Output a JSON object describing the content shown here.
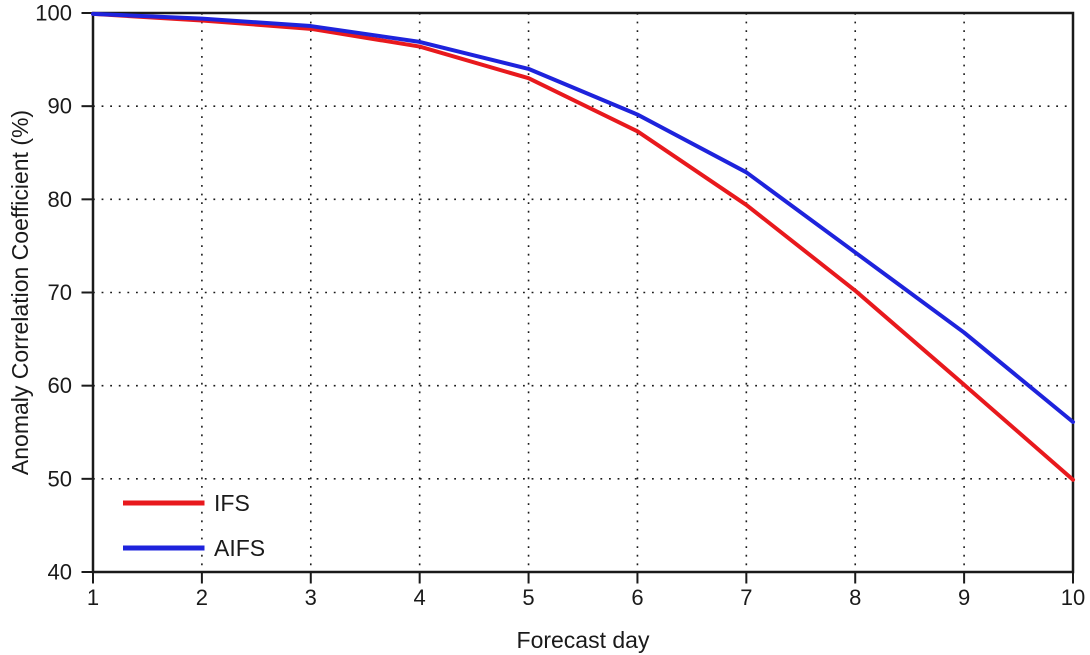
{
  "figure": {
    "background": "#ffffff"
  },
  "style": {
    "axis_color": "#1a1a1a",
    "grid_color": "#1a1a1a",
    "text_color": "#1a1a1a",
    "line_width": 4
  },
  "chart_data": {
    "type": "line",
    "title": "",
    "xlabel": "Forecast day",
    "ylabel": "Anomaly Correlation Coefficient (%)",
    "x": [
      1,
      2,
      3,
      4,
      5,
      6,
      7,
      8,
      9,
      10
    ],
    "series": [
      {
        "name": "IFS",
        "color": "#e8191d",
        "values": [
          99.9,
          99.2,
          98.3,
          96.4,
          93.0,
          87.3,
          79.4,
          70.2,
          60.1,
          49.9
        ]
      },
      {
        "name": "AIFS",
        "color": "#1e23dc",
        "values": [
          99.9,
          99.4,
          98.6,
          96.9,
          94.0,
          89.1,
          82.9,
          74.3,
          65.7,
          56.1
        ]
      }
    ],
    "xlim": [
      1,
      10
    ],
    "ylim": [
      40,
      100
    ],
    "xticks": [
      1,
      2,
      3,
      4,
      5,
      6,
      7,
      8,
      9,
      10
    ],
    "yticks": [
      40,
      50,
      60,
      70,
      80,
      90,
      100
    ],
    "grid": "dotted",
    "legend_position": "bottom-left",
    "legend_items": [
      "IFS",
      "AIFS"
    ]
  }
}
